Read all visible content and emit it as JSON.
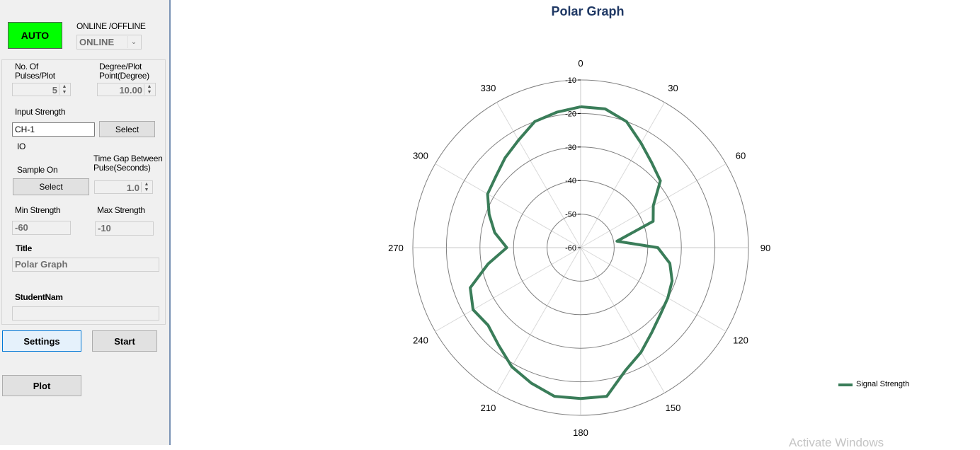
{
  "sidebar": {
    "auto_label": "AUTO",
    "mode_label": "ONLINE /OFFLINE",
    "mode_value": "ONLINE",
    "pulses_label_1": "No. Of",
    "pulses_label_2": "Pulses/Plot",
    "pulses_value": "5",
    "degree_label_1": "Degree/Plot",
    "degree_label_2": "Point(Degree)",
    "degree_value": "10.00",
    "input_strength_label": "Input Strength",
    "input_strength_value": "CH-1",
    "input_select_label": "Select",
    "io_label": "IO",
    "sample_on_label": "Sample On",
    "sample_select_label": "Select",
    "time_gap_label_1": "Time Gap Between",
    "time_gap_label_2": "Pulse(Seconds)",
    "time_gap_value": "1.0",
    "min_strength_label": "Min Strength",
    "min_strength_value": "-60",
    "max_strength_label": "Max Strength",
    "max_strength_value": "-10",
    "title_label": "Title",
    "title_value": "Polar Graph",
    "student_label": "StudentNam",
    "student_value": "",
    "settings_label": "Settings",
    "start_label": "Start",
    "plot_label": "Plot"
  },
  "watermark": "Activate Windows",
  "chart_data": {
    "type": "polar",
    "title": "Polar Graph",
    "angle_ticks": [
      "0",
      "30",
      "60",
      "90",
      "120",
      "150",
      "180",
      "210",
      "240",
      "270",
      "300",
      "330"
    ],
    "radial_ticks": [
      "-10",
      "-20",
      "-30",
      "-40",
      "-50",
      "-60"
    ],
    "radial_range": [
      -60,
      -10
    ],
    "grid": true,
    "legend_position": "right",
    "series": [
      {
        "name": "Signal Strength",
        "color": "#3a7d59",
        "angles": [
          0,
          10,
          20,
          30,
          40,
          50,
          60,
          70,
          80,
          90,
          100,
          110,
          120,
          130,
          140,
          150,
          160,
          170,
          180,
          190,
          200,
          210,
          220,
          230,
          240,
          250,
          260,
          270,
          280,
          290,
          300,
          310,
          320,
          330,
          340,
          350,
          360
        ],
        "values": [
          -18,
          -18,
          -20,
          -24,
          -27,
          -29,
          -35,
          -37,
          -49,
          -37,
          -33,
          -31,
          -30,
          -29,
          -27,
          -24,
          -21,
          -15,
          -15,
          -15,
          -17,
          -19,
          -22,
          -24,
          -23,
          -25,
          -32,
          -38,
          -34,
          -31,
          -28,
          -27,
          -25,
          -23,
          -20,
          -19,
          -18
        ]
      }
    ]
  }
}
